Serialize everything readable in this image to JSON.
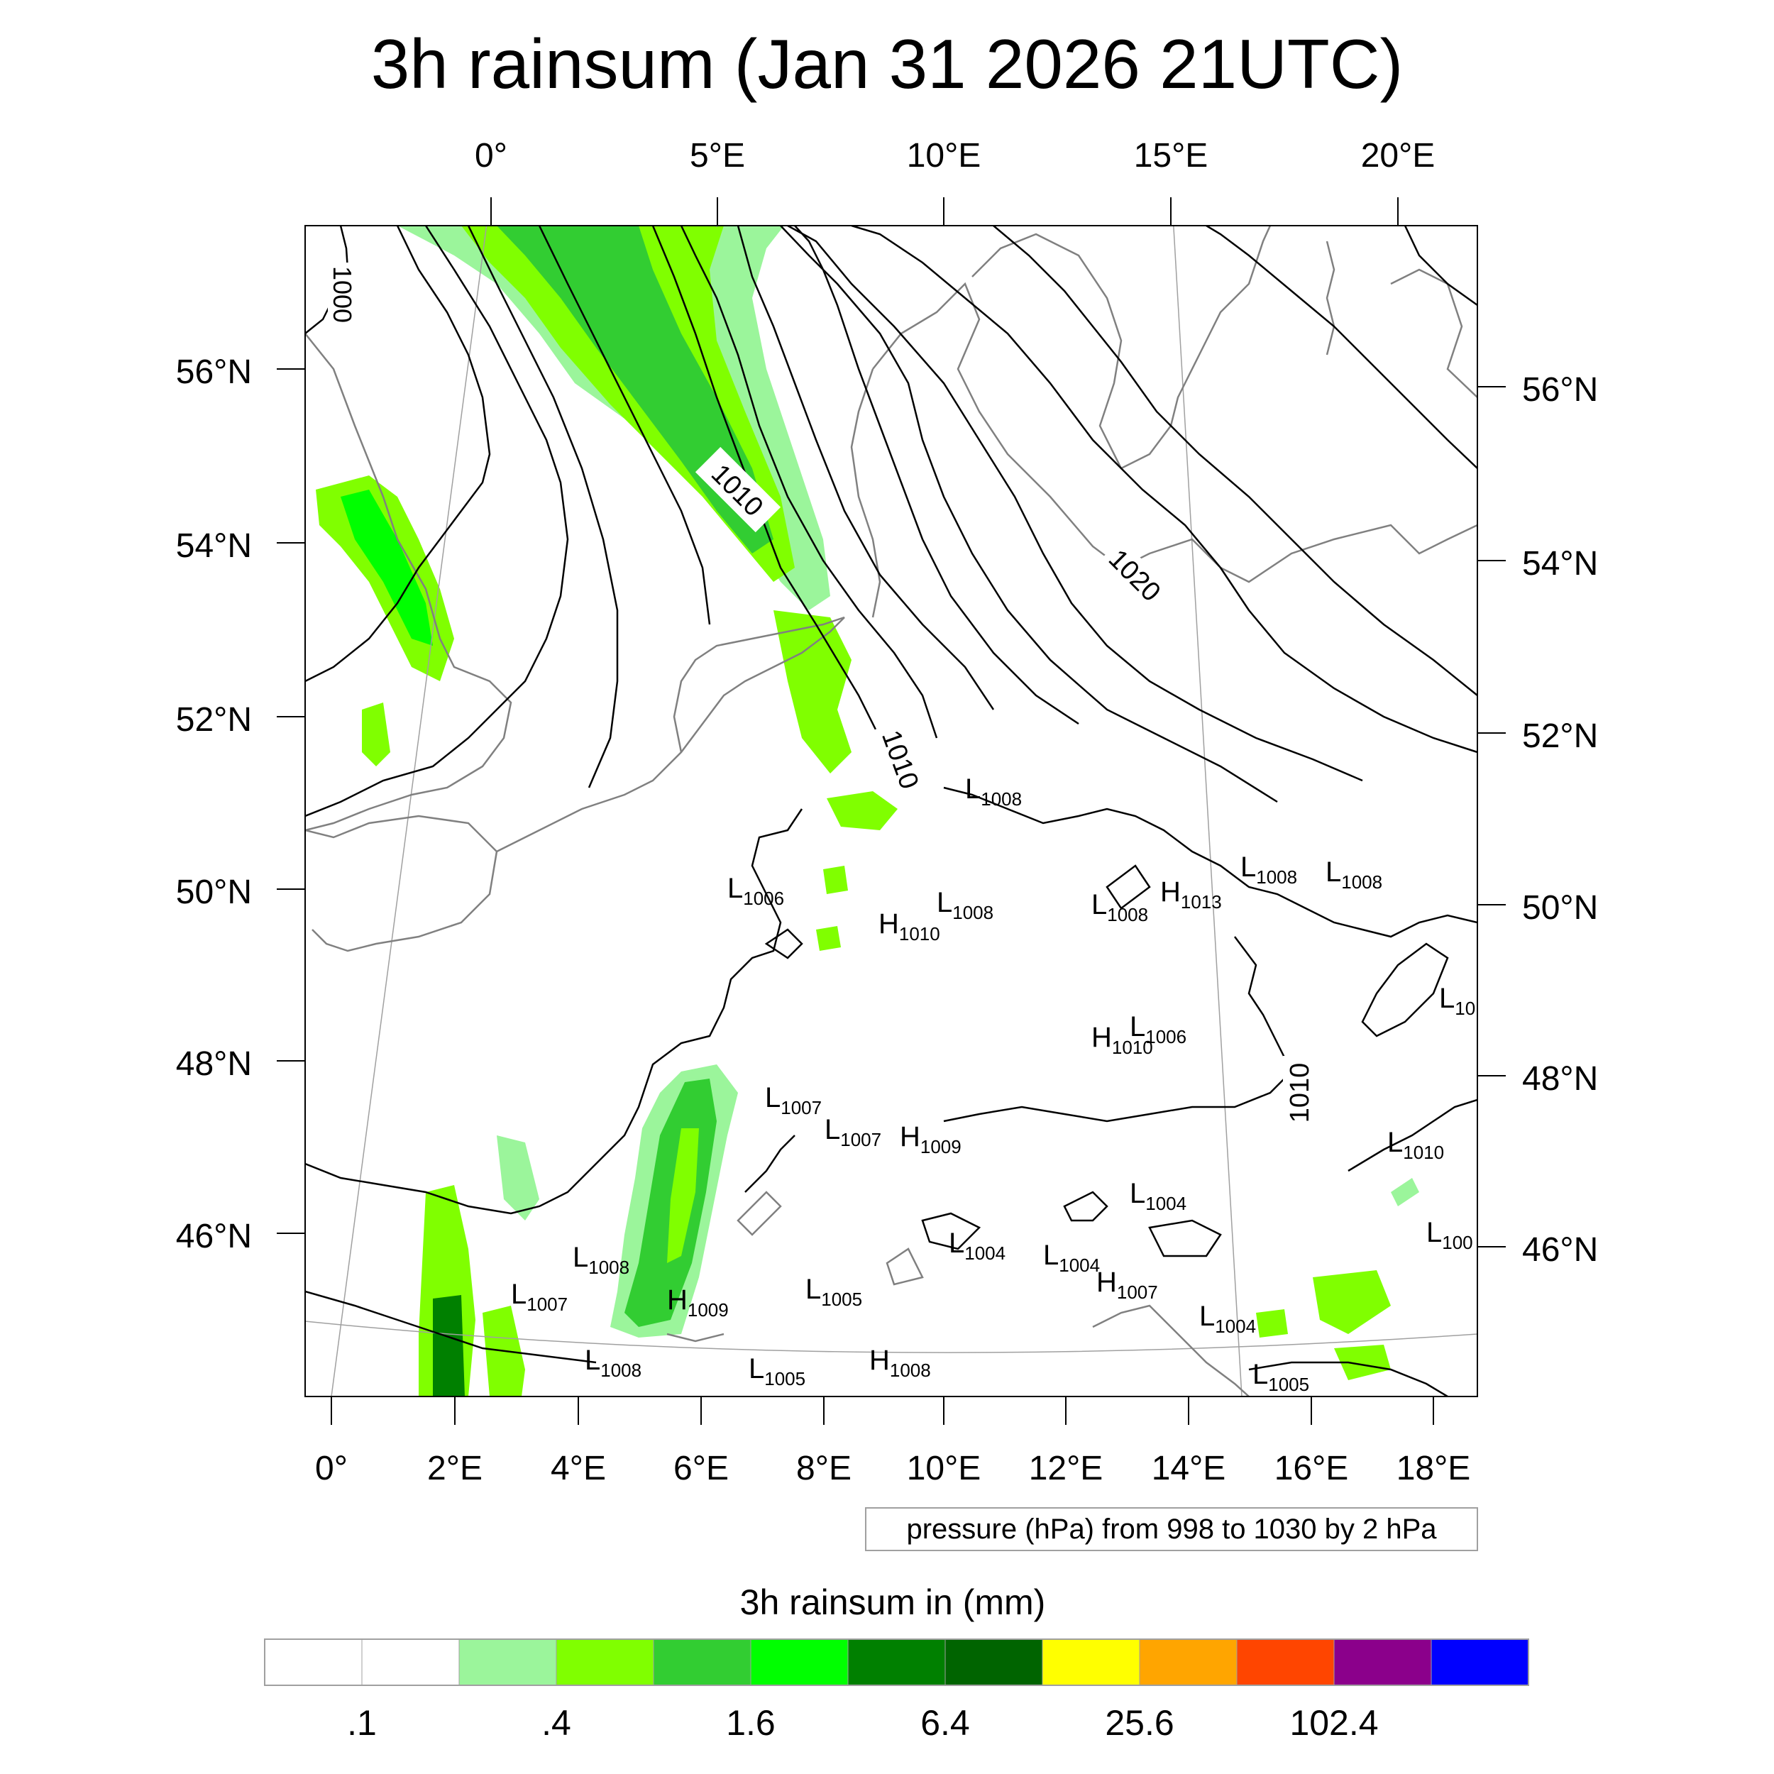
{
  "title": "3h rainsum (Jan 31 2026 21UTC)",
  "axes": {
    "top_lon_labels": [
      "0°",
      "5°E",
      "10°E",
      "15°E",
      "20°E"
    ],
    "bottom_lon_labels": [
      "0°",
      "2°E",
      "4°E",
      "6°E",
      "8°E",
      "10°E",
      "12°E",
      "14°E",
      "16°E",
      "18°E"
    ],
    "left_lat_labels": [
      "56°N",
      "54°N",
      "52°N",
      "50°N",
      "48°N",
      "46°N"
    ],
    "right_lat_labels": [
      "56°N",
      "54°N",
      "52°N",
      "50°N",
      "48°N",
      "46°N"
    ]
  },
  "contour_labels": [
    "1000",
    "1010",
    "1020",
    "1010",
    "1010"
  ],
  "pressure_centers": [
    {
      "type": "L",
      "value": "1008"
    },
    {
      "type": "L",
      "value": "1006"
    },
    {
      "type": "L",
      "value": "1008"
    },
    {
      "type": "H",
      "value": "1010"
    },
    {
      "type": "L",
      "value": "1008"
    },
    {
      "type": "H",
      "value": "1013"
    },
    {
      "type": "L",
      "value": "1008"
    },
    {
      "type": "L",
      "value": "1008"
    },
    {
      "type": "L",
      "value": "10"
    },
    {
      "type": "L",
      "value": "1006"
    },
    {
      "type": "H",
      "value": "1010"
    },
    {
      "type": "L",
      "value": "1007"
    },
    {
      "type": "L",
      "value": "1007"
    },
    {
      "type": "H",
      "value": "1009"
    },
    {
      "type": "L",
      "value": "1010"
    },
    {
      "type": "L",
      "value": "1004"
    },
    {
      "type": "L",
      "value": "100"
    },
    {
      "type": "L",
      "value": "1008"
    },
    {
      "type": "L",
      "value": "1004"
    },
    {
      "type": "L",
      "value": "1004"
    },
    {
      "type": "L",
      "value": "1007"
    },
    {
      "type": "H",
      "value": "1009"
    },
    {
      "type": "L",
      "value": "1005"
    },
    {
      "type": "H",
      "value": "1007"
    },
    {
      "type": "L",
      "value": "1004"
    },
    {
      "type": "L",
      "value": "1008"
    },
    {
      "type": "L",
      "value": "1005"
    },
    {
      "type": "H",
      "value": "1008"
    },
    {
      "type": "L",
      "value": "1005"
    }
  ],
  "contour_info": "pressure (hPa) from 998 to 1030 by 2 hPa",
  "colorbar": {
    "title": "3h rainsum in (mm)",
    "colors": [
      "#ffffff",
      "#ffffff",
      "#9bf59b",
      "#80ff00",
      "#32cd32",
      "#00ff00",
      "#008000",
      "#006400",
      "#ffff00",
      "#ffa500",
      "#ff4500",
      "#8b008b",
      "#0000ff"
    ],
    "tick_labels": [
      ".1",
      ".4",
      "1.6",
      "6.4",
      "25.6",
      "102.4"
    ]
  },
  "colors": {
    "coastline": "#808080",
    "isobar": "#000000",
    "graticule": "#a0a0a0"
  }
}
